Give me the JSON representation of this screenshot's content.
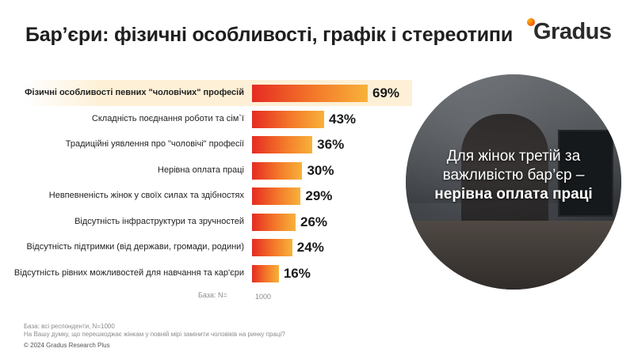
{
  "title": "Бар’єри: фізичні особливості, графік і стереотипи",
  "logo": {
    "text": "Gradus"
  },
  "chart_data": {
    "type": "bar",
    "orientation": "horizontal",
    "categories": [
      "Фізичні особливості певних \"чоловічих\" професій",
      "Складність поєднання роботи та сім`ї",
      "Традиційні уявлення про \"чоловічі\" професії",
      "Нерівна оплата праці",
      "Невпевненість жінок у своїх силах та здібностях",
      "Відсутність інфраструктури та зручностей",
      "Відсутність підтримки (від держави, громади, родини)",
      "Відсутність рівних можливостей для навчання та кар'єри"
    ],
    "values": [
      69,
      43,
      36,
      30,
      29,
      26,
      24,
      16
    ],
    "value_labels": [
      "69%",
      "43%",
      "36%",
      "30%",
      "29%",
      "26%",
      "24%",
      "16%"
    ],
    "highlighted_index": 0,
    "colors": {
      "bar_start": "#e52b22",
      "bar_end": "#f7b23a",
      "highlight": "#fdf0d6"
    },
    "base_label": "База: N=",
    "base_value": "1000"
  },
  "photo": {
    "caption_plain": "Для жінок третій за важливістю бар’єр – ",
    "caption_bold": "нерівна оплата праці"
  },
  "footnotes": {
    "base": "База: всі респонденти, N=1000",
    "question": "На Вашу думку, що перешкоджає жінкам у повній мірі замінити чоловіків на ринку праці?",
    "copyright": "© 2024 Gradus Research Plus"
  }
}
